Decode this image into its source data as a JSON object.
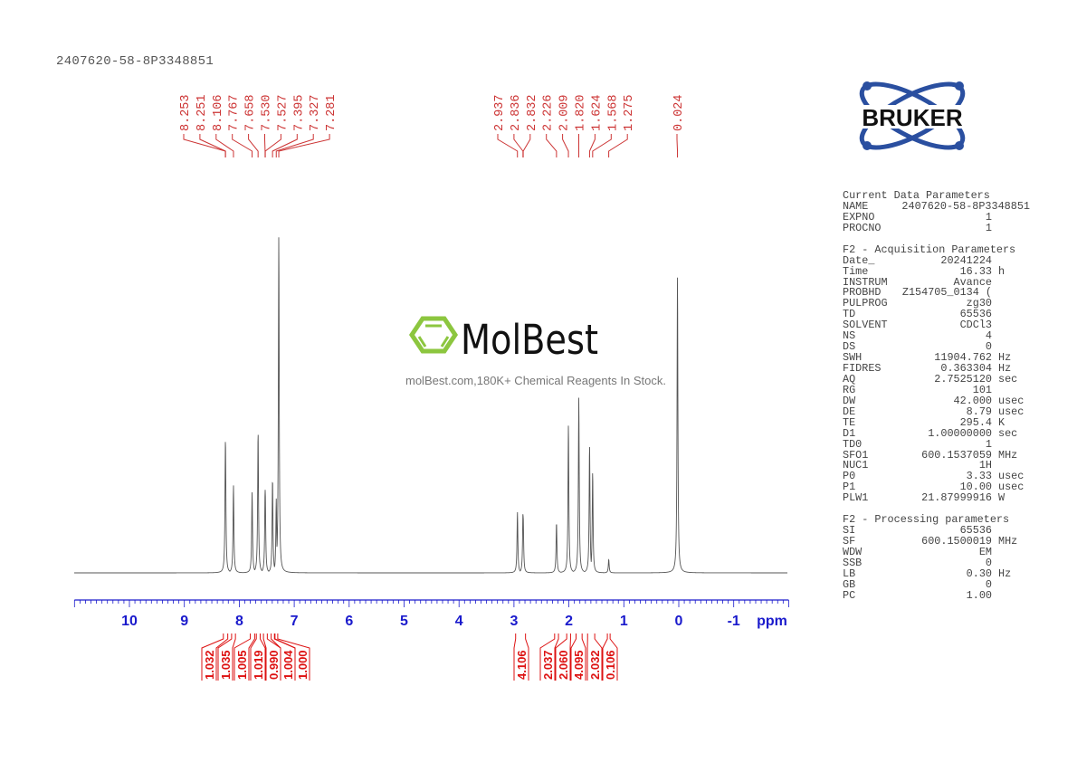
{
  "title": "2407620-58-8P3348851",
  "logo": {
    "brand": "BRUKER",
    "colors": {
      "orbit": "#2a4fa0",
      "text": "#111111"
    }
  },
  "watermark": {
    "brand": "MolBest",
    "tagline": "molBest.com,180K+ Chemical Reagents In Stock.",
    "colors": {
      "ring": "#8cc63f",
      "text": "#111111"
    }
  },
  "params": {
    "current": {
      "heading": "Current Data Parameters",
      "rows": [
        {
          "label": "NAME",
          "value": "2407620-58-8P3348851",
          "unit": ""
        },
        {
          "label": "EXPNO",
          "value": "1",
          "unit": ""
        },
        {
          "label": "PROCNO",
          "value": "1",
          "unit": ""
        }
      ]
    },
    "acquisition": {
      "heading": "F2 - Acquisition Parameters",
      "rows": [
        {
          "label": "Date_",
          "value": "20241224",
          "unit": ""
        },
        {
          "label": "Time",
          "value": "16.33",
          "unit": "h"
        },
        {
          "label": "INSTRUM",
          "value": "Avance",
          "unit": ""
        },
        {
          "label": "PROBHD",
          "value": "Z154705_0134 (",
          "unit": ""
        },
        {
          "label": "PULPROG",
          "value": "zg30",
          "unit": ""
        },
        {
          "label": "TD",
          "value": "65536",
          "unit": ""
        },
        {
          "label": "SOLVENT",
          "value": "CDCl3",
          "unit": ""
        },
        {
          "label": "NS",
          "value": "4",
          "unit": ""
        },
        {
          "label": "DS",
          "value": "0",
          "unit": ""
        },
        {
          "label": "SWH",
          "value": "11904.762",
          "unit": "Hz"
        },
        {
          "label": "FIDRES",
          "value": "0.363304",
          "unit": "Hz"
        },
        {
          "label": "AQ",
          "value": "2.7525120",
          "unit": "sec"
        },
        {
          "label": "RG",
          "value": "101",
          "unit": ""
        },
        {
          "label": "DW",
          "value": "42.000",
          "unit": "usec"
        },
        {
          "label": "DE",
          "value": "8.79",
          "unit": "usec"
        },
        {
          "label": "TE",
          "value": "295.4",
          "unit": "K"
        },
        {
          "label": "D1",
          "value": "1.00000000",
          "unit": "sec"
        },
        {
          "label": "TD0",
          "value": "1",
          "unit": ""
        },
        {
          "label": "SFO1",
          "value": "600.1537059",
          "unit": "MHz"
        },
        {
          "label": "NUC1",
          "value": "1H",
          "unit": ""
        },
        {
          "label": "P0",
          "value": "3.33",
          "unit": "usec"
        },
        {
          "label": "P1",
          "value": "10.00",
          "unit": "usec"
        },
        {
          "label": "PLW1",
          "value": "21.87999916",
          "unit": "W"
        }
      ]
    },
    "processing": {
      "heading": "F2 - Processing parameters",
      "rows": [
        {
          "label": "SI",
          "value": "65536",
          "unit": ""
        },
        {
          "label": "SF",
          "value": "600.1500019",
          "unit": "MHz"
        },
        {
          "label": "WDW",
          "value": "EM",
          "unit": ""
        },
        {
          "label": "SSB",
          "value": "0",
          "unit": ""
        },
        {
          "label": "LB",
          "value": "0.30",
          "unit": "Hz"
        },
        {
          "label": "GB",
          "value": "0",
          "unit": ""
        },
        {
          "label": "PC",
          "value": "1.00",
          "unit": ""
        }
      ]
    }
  },
  "chart_data": {
    "type": "line",
    "xlabel": "ppm",
    "xlim": [
      11,
      -2
    ],
    "x_ticks": [
      "10",
      "9",
      "8",
      "7",
      "6",
      "5",
      "4",
      "3",
      "2",
      "1",
      "0",
      "-1"
    ],
    "x_tick_values": [
      10,
      9,
      8,
      7,
      6,
      5,
      4,
      3,
      2,
      1,
      0,
      -1
    ],
    "grid": false,
    "colors": {
      "spectrum": "#555555",
      "axis": "#1a1acc",
      "labels": "#cc3333",
      "integrals": "#dd1111"
    },
    "peak_label_groups": [
      [
        "8.253",
        "8.251",
        "8.106",
        "7.767",
        "7.658",
        "7.530",
        "7.527",
        "7.395",
        "7.327",
        "7.281"
      ],
      [
        "2.937",
        "2.836",
        "2.832",
        "2.226",
        "2.009",
        "1.820",
        "1.624",
        "1.568",
        "1.275"
      ],
      [
        "0.024"
      ]
    ],
    "peaks": [
      {
        "ppm": 8.253,
        "intensity": 39
      },
      {
        "ppm": 8.251,
        "intensity": 38
      },
      {
        "ppm": 8.106,
        "intensity": 26
      },
      {
        "ppm": 7.767,
        "intensity": 24
      },
      {
        "ppm": 7.658,
        "intensity": 42
      },
      {
        "ppm": 7.53,
        "intensity": 25
      },
      {
        "ppm": 7.527,
        "intensity": 24
      },
      {
        "ppm": 7.395,
        "intensity": 28
      },
      {
        "ppm": 7.327,
        "intensity": 22
      },
      {
        "ppm": 7.281,
        "intensity": 100
      },
      {
        "ppm": 2.937,
        "intensity": 18
      },
      {
        "ppm": 2.836,
        "intensity": 18
      },
      {
        "ppm": 2.832,
        "intensity": 17
      },
      {
        "ppm": 2.226,
        "intensity": 15
      },
      {
        "ppm": 2.009,
        "intensity": 44
      },
      {
        "ppm": 1.82,
        "intensity": 52
      },
      {
        "ppm": 1.624,
        "intensity": 38
      },
      {
        "ppm": 1.568,
        "intensity": 30
      },
      {
        "ppm": 1.275,
        "intensity": 4
      },
      {
        "ppm": 0.024,
        "intensity": 88
      }
    ],
    "integrals": [
      {
        "value": "1.032",
        "range": [
          8.29,
          8.21
        ]
      },
      {
        "value": "1.035",
        "range": [
          8.14,
          8.07
        ]
      },
      {
        "value": "1.005",
        "range": [
          7.8,
          7.72
        ]
      },
      {
        "value": "1.019",
        "range": [
          7.69,
          7.62
        ]
      },
      {
        "value": "0.990",
        "range": [
          7.56,
          7.49
        ]
      },
      {
        "value": "1.004",
        "range": [
          7.42,
          7.36
        ]
      },
      {
        "value": "1.000",
        "range": [
          7.35,
          7.3
        ]
      },
      {
        "value": "4.106",
        "range": [
          2.97,
          2.79
        ]
      },
      {
        "value": "2.037",
        "range": [
          2.26,
          2.19
        ]
      },
      {
        "value": "2.060",
        "range": [
          2.04,
          1.97
        ]
      },
      {
        "value": "4.095",
        "range": [
          1.87,
          1.76
        ]
      },
      {
        "value": "2.032",
        "range": [
          1.66,
          1.53
        ]
      },
      {
        "value": "0.106",
        "range": [
          1.3,
          1.25
        ]
      }
    ]
  }
}
